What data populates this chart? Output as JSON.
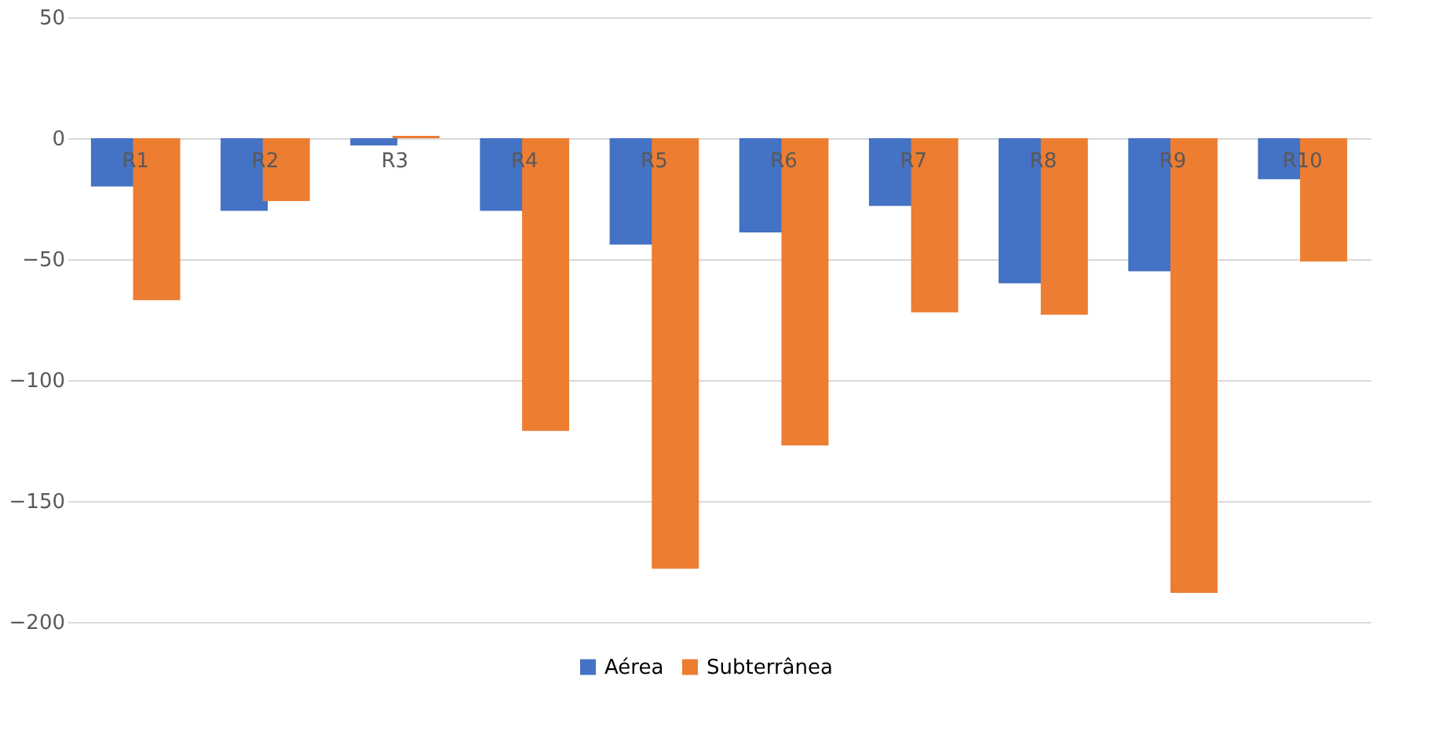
{
  "chart_data": {
    "type": "bar",
    "categories": [
      "R1",
      "R2",
      "R3",
      "R4",
      "R5",
      "R6",
      "R7",
      "R8",
      "R9",
      "R10"
    ],
    "series": [
      {
        "name": "Aérea",
        "color": "#4472c4",
        "values": [
          -20,
          -30,
          -3,
          -30,
          -44,
          -39,
          -28,
          -60,
          -55,
          -17
        ]
      },
      {
        "name": "Subterrânea",
        "color": "#ed7d31",
        "values": [
          -67,
          -26,
          1,
          -121,
          -178,
          -127,
          -72,
          -73,
          -188,
          -51
        ]
      }
    ],
    "ylim": [
      -200,
      50
    ],
    "yticks": [
      -200,
      -150,
      -100,
      -50,
      0,
      50
    ],
    "grid": "y",
    "legend": "bottom"
  }
}
